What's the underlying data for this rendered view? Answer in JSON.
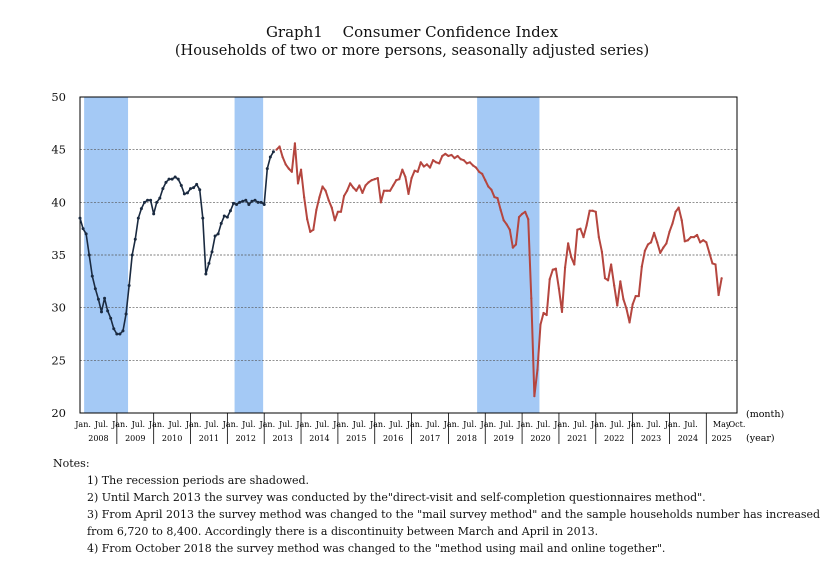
{
  "header": {
    "title": "Graph1　 Consumer Confidence Index",
    "subtitle": "(Households of two or more persons, seasonally adjusted series)"
  },
  "chart_data": {
    "type": "line",
    "title": "Consumer Confidence Index",
    "ylim": [
      20,
      50
    ],
    "yticks": [
      20,
      25,
      30,
      35,
      40,
      45,
      50
    ],
    "xlabel_month": "(month)",
    "xlabel_year": "(year)",
    "x_start": "2007-12",
    "x_end": "2025-10",
    "month_labels": [
      "Jan.",
      "Jul."
    ],
    "end_labels": [
      "May",
      "Oct."
    ],
    "years": [
      "2008",
      "2009",
      "2010",
      "2011",
      "2012",
      "2013",
      "2014",
      "2015",
      "2016",
      "2017",
      "2018",
      "2019",
      "2020",
      "2021",
      "2022",
      "2023",
      "2024",
      "2025"
    ],
    "recessions": [
      {
        "start": "2008-02",
        "end": "2009-03"
      },
      {
        "start": "2012-03",
        "end": "2012-11"
      },
      {
        "start": "2018-10",
        "end": "2020-05"
      }
    ],
    "series": [
      {
        "name": "direct-visit and self-completion",
        "color": "#1a2a40",
        "points": [
          [
            "2007-12",
            38.5
          ],
          [
            "2008-01",
            37.5
          ],
          [
            "2008-02",
            37.0
          ],
          [
            "2008-03",
            35.0
          ],
          [
            "2008-04",
            33.0
          ],
          [
            "2008-05",
            31.8
          ],
          [
            "2008-06",
            30.8
          ],
          [
            "2008-07",
            29.6
          ],
          [
            "2008-08",
            30.9
          ],
          [
            "2008-09",
            29.7
          ],
          [
            "2008-10",
            29.0
          ],
          [
            "2008-11",
            28.0
          ],
          [
            "2008-12",
            27.5
          ],
          [
            "2009-01",
            27.5
          ],
          [
            "2009-02",
            27.8
          ],
          [
            "2009-03",
            29.4
          ],
          [
            "2009-04",
            32.1
          ],
          [
            "2009-05",
            35.0
          ],
          [
            "2009-06",
            36.5
          ],
          [
            "2009-07",
            38.5
          ],
          [
            "2009-08",
            39.4
          ],
          [
            "2009-09",
            40.0
          ],
          [
            "2009-10",
            40.2
          ],
          [
            "2009-11",
            40.2
          ],
          [
            "2009-12",
            38.9
          ],
          [
            "2010-01",
            40.0
          ],
          [
            "2010-02",
            40.4
          ],
          [
            "2010-03",
            41.3
          ],
          [
            "2010-04",
            41.9
          ],
          [
            "2010-05",
            42.2
          ],
          [
            "2010-06",
            42.2
          ],
          [
            "2010-07",
            42.4
          ],
          [
            "2010-08",
            42.2
          ],
          [
            "2010-09",
            41.6
          ],
          [
            "2010-10",
            40.8
          ],
          [
            "2010-11",
            40.9
          ],
          [
            "2010-12",
            41.3
          ],
          [
            "2011-01",
            41.4
          ],
          [
            "2011-02",
            41.7
          ],
          [
            "2011-03",
            41.2
          ],
          [
            "2011-04",
            38.5
          ],
          [
            "2011-05",
            33.2
          ],
          [
            "2011-06",
            34.2
          ],
          [
            "2011-07",
            35.3
          ],
          [
            "2011-08",
            36.8
          ],
          [
            "2011-09",
            37.0
          ],
          [
            "2011-10",
            38.0
          ],
          [
            "2011-11",
            38.7
          ],
          [
            "2011-12",
            38.6
          ],
          [
            "2012-01",
            39.2
          ],
          [
            "2012-02",
            39.9
          ],
          [
            "2012-03",
            39.8
          ],
          [
            "2012-04",
            40.0
          ],
          [
            "2012-05",
            40.1
          ],
          [
            "2012-06",
            40.2
          ],
          [
            "2012-07",
            39.8
          ],
          [
            "2012-08",
            40.1
          ],
          [
            "2012-09",
            40.2
          ],
          [
            "2012-10",
            40.0
          ],
          [
            "2012-11",
            40.0
          ],
          [
            "2012-12",
            39.8
          ],
          [
            "2013-01",
            43.2
          ],
          [
            "2013-02",
            44.3
          ],
          [
            "2013-03",
            44.8
          ]
        ]
      },
      {
        "name": "mail survey",
        "color": "#b5463f",
        "points": [
          [
            "2013-04",
            45.0
          ],
          [
            "2013-05",
            45.3
          ],
          [
            "2013-06",
            44.3
          ],
          [
            "2013-07",
            43.6
          ],
          [
            "2013-08",
            43.2
          ],
          [
            "2013-09",
            42.9
          ],
          [
            "2013-10",
            45.6
          ],
          [
            "2013-11",
            41.8
          ],
          [
            "2013-12",
            43.1
          ],
          [
            "2014-01",
            40.5
          ],
          [
            "2014-02",
            38.4
          ],
          [
            "2014-03",
            37.2
          ],
          [
            "2014-04",
            37.4
          ],
          [
            "2014-05",
            39.3
          ],
          [
            "2014-06",
            40.5
          ],
          [
            "2014-07",
            41.5
          ],
          [
            "2014-08",
            41.1
          ],
          [
            "2014-09",
            40.2
          ],
          [
            "2014-10",
            39.5
          ],
          [
            "2014-11",
            38.3
          ],
          [
            "2014-12",
            39.1
          ],
          [
            "2015-01",
            39.1
          ],
          [
            "2015-02",
            40.6
          ],
          [
            "2015-03",
            41.1
          ],
          [
            "2015-04",
            41.8
          ],
          [
            "2015-05",
            41.4
          ],
          [
            "2015-06",
            41.1
          ],
          [
            "2015-07",
            41.6
          ],
          [
            "2015-08",
            40.9
          ],
          [
            "2015-09",
            41.6
          ],
          [
            "2015-10",
            41.9
          ],
          [
            "2015-11",
            42.1
          ],
          [
            "2015-12",
            42.2
          ],
          [
            "2016-01",
            42.3
          ],
          [
            "2016-02",
            40.0
          ],
          [
            "2016-03",
            41.1
          ],
          [
            "2016-04",
            41.1
          ],
          [
            "2016-05",
            41.1
          ],
          [
            "2016-06",
            41.6
          ],
          [
            "2016-07",
            42.1
          ],
          [
            "2016-08",
            42.2
          ],
          [
            "2016-09",
            43.1
          ],
          [
            "2016-10",
            42.4
          ],
          [
            "2016-11",
            40.8
          ],
          [
            "2016-12",
            42.3
          ],
          [
            "2017-01",
            43.0
          ],
          [
            "2017-02",
            42.9
          ],
          [
            "2017-03",
            43.8
          ],
          [
            "2017-04",
            43.4
          ],
          [
            "2017-05",
            43.6
          ],
          [
            "2017-06",
            43.3
          ],
          [
            "2017-07",
            44.0
          ],
          [
            "2017-08",
            43.8
          ],
          [
            "2017-09",
            43.7
          ],
          [
            "2017-10",
            44.4
          ],
          [
            "2017-11",
            44.6
          ],
          [
            "2017-12",
            44.4
          ],
          [
            "2018-01",
            44.5
          ],
          [
            "2018-02",
            44.2
          ],
          [
            "2018-03",
            44.4
          ],
          [
            "2018-04",
            44.1
          ],
          [
            "2018-05",
            44.0
          ],
          [
            "2018-06",
            43.7
          ],
          [
            "2018-07",
            43.8
          ],
          [
            "2018-08",
            43.5
          ],
          [
            "2018-09",
            43.3
          ],
          [
            "2018-10",
            42.9
          ],
          [
            "2018-11",
            42.7
          ],
          [
            "2018-12",
            42.1
          ],
          [
            "2019-01",
            41.5
          ],
          [
            "2019-02",
            41.2
          ],
          [
            "2019-03",
            40.5
          ],
          [
            "2019-04",
            40.4
          ],
          [
            "2019-05",
            39.3
          ],
          [
            "2019-06",
            38.3
          ],
          [
            "2019-07",
            37.9
          ],
          [
            "2019-08",
            37.4
          ],
          [
            "2019-09",
            35.7
          ],
          [
            "2019-10",
            36.0
          ],
          [
            "2019-11",
            38.6
          ],
          [
            "2019-12",
            38.9
          ],
          [
            "2020-01",
            39.1
          ],
          [
            "2020-02",
            38.4
          ],
          [
            "2020-03",
            30.9
          ],
          [
            "2020-04",
            21.6
          ],
          [
            "2020-05",
            24.1
          ],
          [
            "2020-06",
            28.4
          ],
          [
            "2020-07",
            29.5
          ],
          [
            "2020-08",
            29.3
          ],
          [
            "2020-09",
            32.7
          ],
          [
            "2020-10",
            33.6
          ],
          [
            "2020-11",
            33.7
          ],
          [
            "2020-12",
            31.8
          ],
          [
            "2021-01",
            29.6
          ],
          [
            "2021-02",
            33.8
          ],
          [
            "2021-03",
            36.1
          ],
          [
            "2021-04",
            34.8
          ],
          [
            "2021-05",
            34.1
          ],
          [
            "2021-06",
            37.4
          ],
          [
            "2021-07",
            37.5
          ],
          [
            "2021-08",
            36.7
          ],
          [
            "2021-09",
            37.8
          ],
          [
            "2021-10",
            39.2
          ],
          [
            "2021-11",
            39.2
          ],
          [
            "2021-12",
            39.1
          ],
          [
            "2022-01",
            36.7
          ],
          [
            "2022-02",
            35.3
          ],
          [
            "2022-03",
            32.8
          ],
          [
            "2022-04",
            32.6
          ],
          [
            "2022-05",
            34.1
          ],
          [
            "2022-06",
            32.1
          ],
          [
            "2022-07",
            30.2
          ],
          [
            "2022-08",
            32.5
          ],
          [
            "2022-09",
            30.8
          ],
          [
            "2022-10",
            29.9
          ],
          [
            "2022-11",
            28.6
          ],
          [
            "2022-12",
            30.3
          ],
          [
            "2023-01",
            31.1
          ],
          [
            "2023-02",
            31.1
          ],
          [
            "2023-03",
            33.9
          ],
          [
            "2023-04",
            35.4
          ],
          [
            "2023-05",
            36.0
          ],
          [
            "2023-06",
            36.2
          ],
          [
            "2023-07",
            37.1
          ],
          [
            "2023-08",
            36.2
          ],
          [
            "2023-09",
            35.2
          ],
          [
            "2023-10",
            35.7
          ],
          [
            "2023-11",
            36.1
          ],
          [
            "2023-12",
            37.2
          ],
          [
            "2024-01",
            38.0
          ],
          [
            "2024-02",
            39.1
          ],
          [
            "2024-03",
            39.5
          ],
          [
            "2024-04",
            38.3
          ],
          [
            "2024-05",
            36.3
          ],
          [
            "2024-06",
            36.4
          ],
          [
            "2024-07",
            36.7
          ],
          [
            "2024-08",
            36.7
          ],
          [
            "2024-09",
            36.9
          ],
          [
            "2024-10",
            36.2
          ],
          [
            "2024-11",
            36.4
          ],
          [
            "2024-12",
            36.2
          ],
          [
            "2025-01",
            35.2
          ],
          [
            "2025-02",
            34.2
          ],
          [
            "2025-03",
            34.1
          ],
          [
            "2025-04",
            31.2
          ],
          [
            "2025-05",
            32.8
          ]
        ]
      }
    ]
  },
  "notes": {
    "label": "Notes:",
    "items": [
      "1) The recession periods are shadowed.",
      "2) Until March 2013 the survey was conducted by the\"direct-visit and self-completion questionnaires method\".",
      "3) From April 2013 the survey method was changed to the \"mail survey method\" and the sample households number has increased",
      "from 6,720 to 8,400. Accordingly there is a discontinuity between March and April in 2013.",
      "4) From October 2018 the survey method was changed to the \"method using mail and online together\"."
    ]
  }
}
